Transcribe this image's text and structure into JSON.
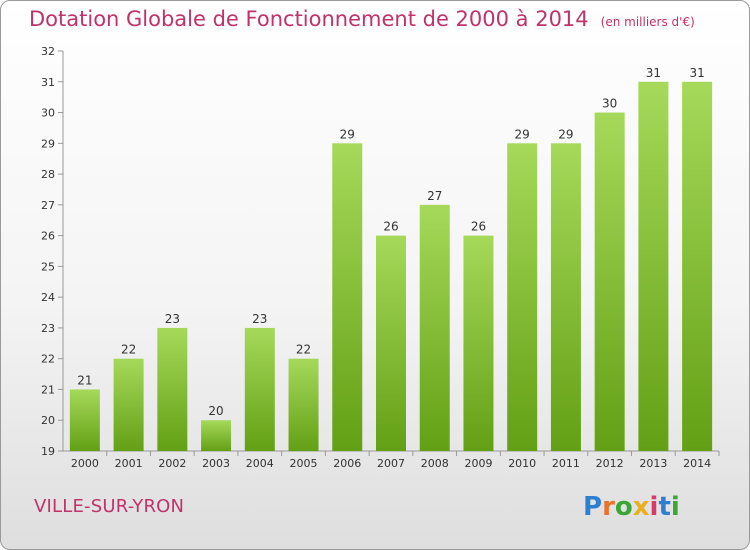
{
  "title": "Dotation Globale de Fonctionnement de 2000 à 2014",
  "unit": "(en milliers d'€)",
  "commune": "VILLE-SUR-YRON",
  "logo": "Proxiti",
  "colors": {
    "bar_light": "#a6d95a",
    "bar_dark": "#63a015",
    "title": "#c0326a"
  },
  "chart_data": {
    "type": "bar",
    "categories": [
      "2000",
      "2001",
      "2002",
      "2003",
      "2004",
      "2005",
      "2006",
      "2007",
      "2008",
      "2009",
      "2010",
      "2011",
      "2012",
      "2013",
      "2014"
    ],
    "values": [
      21,
      22,
      23,
      20,
      23,
      22,
      29,
      26,
      27,
      26,
      29,
      29,
      30,
      31,
      31
    ],
    "ylim": [
      19,
      32
    ],
    "yticks": [
      19,
      20,
      21,
      22,
      23,
      24,
      25,
      26,
      27,
      28,
      29,
      30,
      31,
      32
    ],
    "grid": false,
    "legend": "none"
  }
}
